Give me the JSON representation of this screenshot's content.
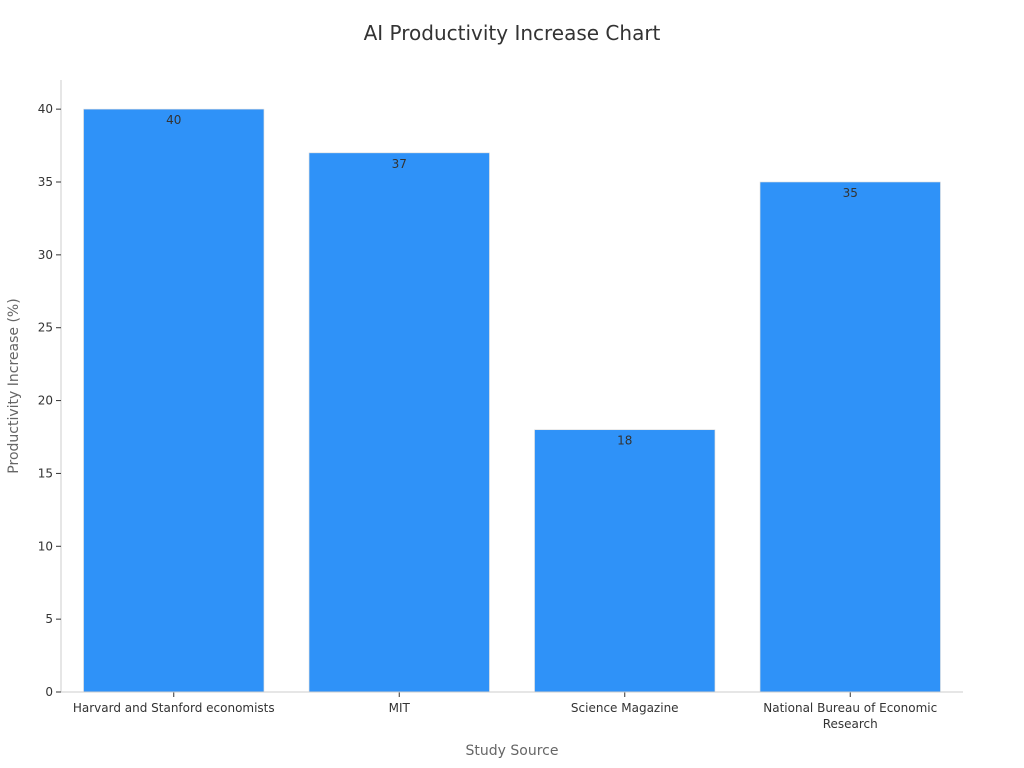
{
  "chart_data": {
    "type": "bar",
    "title": "AI Productivity Increase Chart",
    "xlabel": "Study Source",
    "ylabel": "Productivity Increase (%)",
    "categories": [
      [
        "Harvard and Stanford economists"
      ],
      [
        "MIT"
      ],
      [
        "Science Magazine"
      ],
      [
        "National Bureau of Economic",
        "Research"
      ]
    ],
    "values": [
      40,
      37,
      18,
      35
    ],
    "data_labels": [
      "40",
      "37",
      "18",
      "35"
    ],
    "ylim": [
      0,
      42
    ],
    "yticks": [
      0,
      5,
      10,
      15,
      20,
      25,
      30,
      35,
      40
    ],
    "bar_color": "#2f92f8",
    "grid": false
  }
}
